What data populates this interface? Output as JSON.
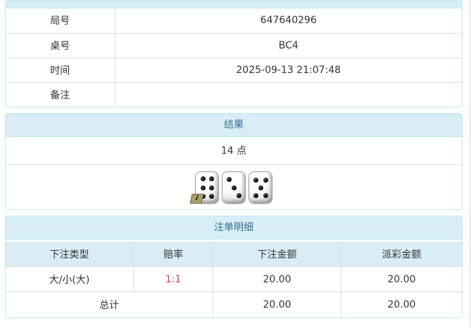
{
  "info": {
    "rows": [
      {
        "label": "局号",
        "value": "647640296"
      },
      {
        "label": "桌号",
        "value": "BC4"
      },
      {
        "label": "时间",
        "value": "2025-09-13 21:07:48"
      },
      {
        "label": "备注",
        "value": ""
      }
    ]
  },
  "result": {
    "title": "结果",
    "points": "14 点",
    "dice": [
      6,
      3,
      5
    ],
    "badge": "i"
  },
  "bets": {
    "title": "注单明细",
    "columns": [
      "下注类型",
      "赔率",
      "下注金额",
      "派彩金额"
    ],
    "rows": [
      {
        "type": "大/小(大)",
        "odds": "1:1",
        "bet": "20.00",
        "payout": "20.00"
      }
    ],
    "total": {
      "label": "总计",
      "bet": "20.00",
      "payout": "20.00"
    }
  },
  "icons": {
    "info_badge": "info-icon",
    "dice": [
      "die-six-icon",
      "die-three-icon",
      "die-five-icon"
    ]
  },
  "colors": {
    "panel_header_bg": "#d9edf7",
    "panel_header_text": "#31708f",
    "panel_border": "#bce8f1",
    "cell_border": "#dddddd",
    "odds_red": "#e03e3e",
    "text": "#333333"
  }
}
